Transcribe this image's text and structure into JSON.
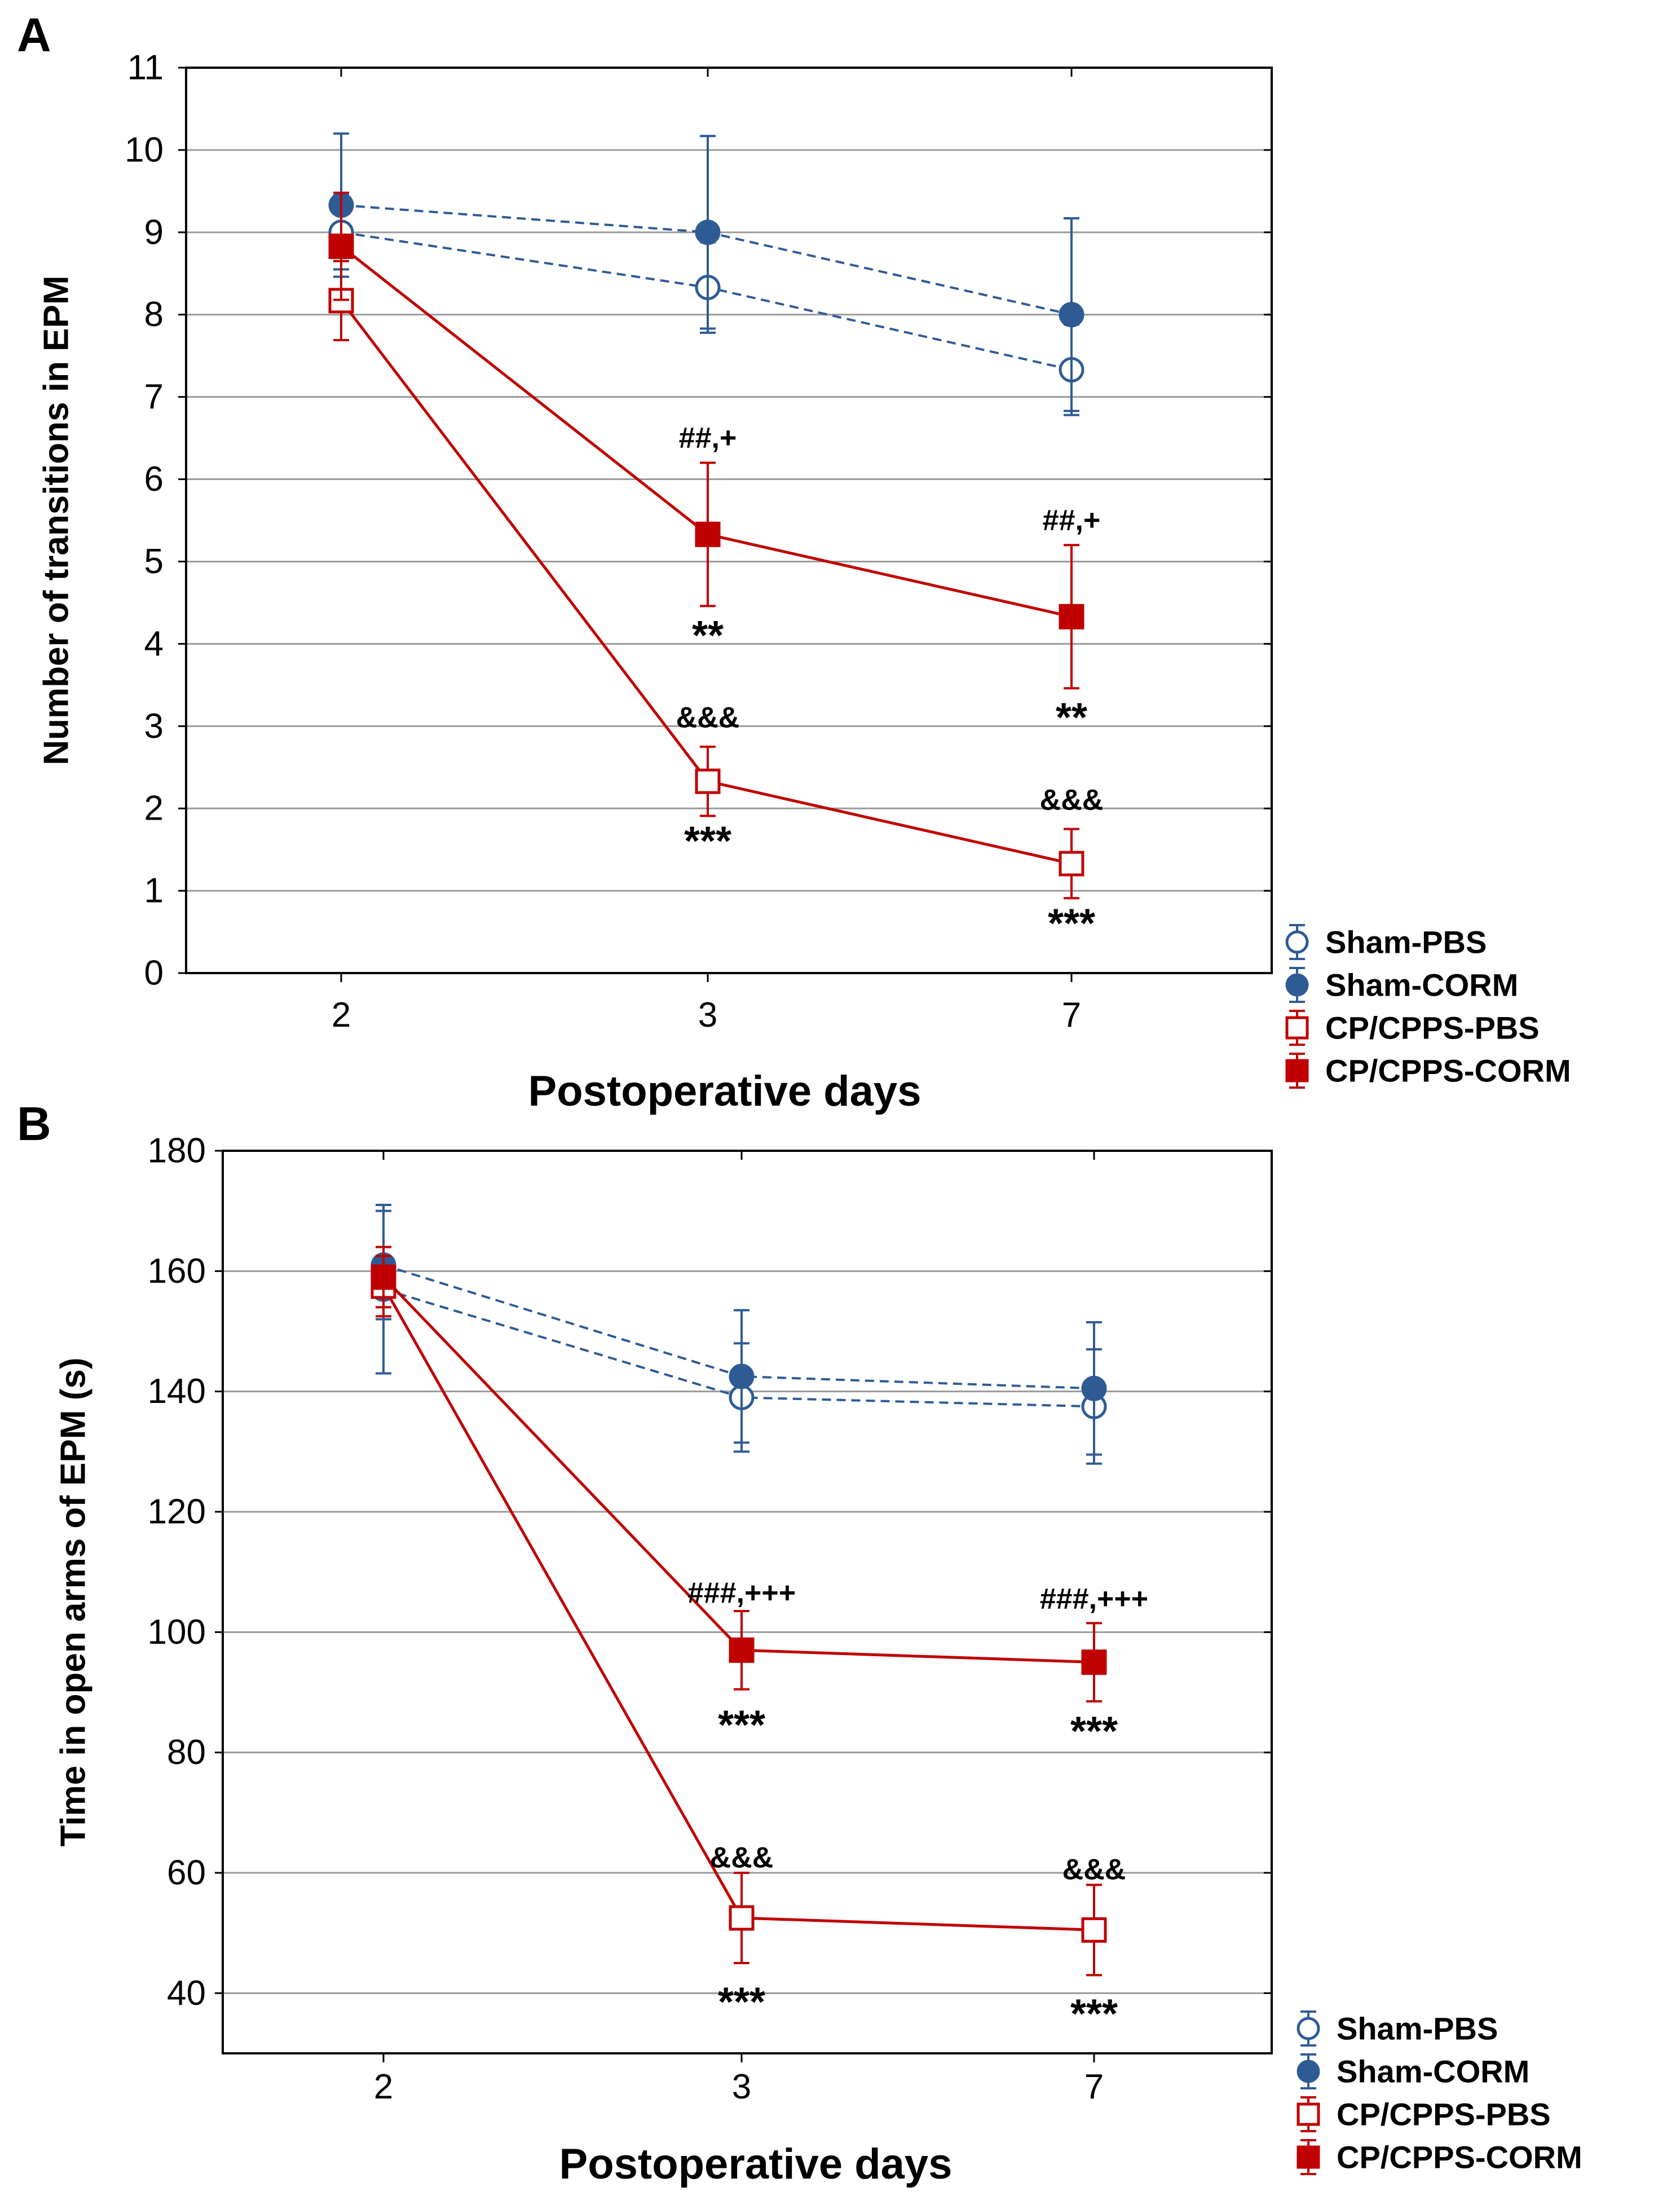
{
  "colors": {
    "sham": "#2f5b94",
    "cp": "#c00000",
    "grid": "#9a9a9a",
    "axis": "#000000"
  },
  "chart_data": [
    {
      "panel_label": "A",
      "type": "line",
      "xlabel": "Postoperative days",
      "ylabel": "Number of transitions in EPM",
      "categories": [
        "2",
        "3",
        "7"
      ],
      "ylim": [
        0,
        11
      ],
      "yticks": [
        "0",
        "1",
        "2",
        "3",
        "4",
        "5",
        "6",
        "7",
        "8",
        "9",
        "10",
        "11"
      ],
      "grid": true,
      "legend_position": "outside-bottom-right",
      "series": [
        {
          "name": "Sham-PBS",
          "values": [
            9.0,
            8.33,
            7.33
          ],
          "errors": [
            0.45,
            0.55,
            0.55
          ],
          "marker": "circle",
          "filled": false,
          "color_key": "sham",
          "dashed": true
        },
        {
          "name": "Sham-CORM",
          "values": [
            9.33,
            9.0,
            8.0
          ],
          "errors": [
            0.87,
            1.17,
            1.17
          ],
          "marker": "circle",
          "filled": true,
          "color_key": "sham",
          "dashed": true
        },
        {
          "name": "CP/CPPS-PBS",
          "values": [
            8.17,
            2.33,
            1.33
          ],
          "errors": [
            0.48,
            0.42,
            0.42
          ],
          "marker": "square",
          "filled": false,
          "color_key": "cp",
          "dashed": false
        },
        {
          "name": "CP/CPPS-CORM",
          "values": [
            8.83,
            5.33,
            4.33
          ],
          "errors": [
            0.65,
            0.87,
            0.87
          ],
          "marker": "square",
          "filled": true,
          "color_key": "cp",
          "dashed": false
        }
      ],
      "annotations": [
        {
          "text": "##,+",
          "category": "3",
          "y": 6.5
        },
        {
          "text": "**",
          "category": "3",
          "y": 4.1
        },
        {
          "text": "&&&",
          "category": "3",
          "y": 3.1
        },
        {
          "text": "***",
          "category": "3",
          "y": 1.6
        },
        {
          "text": "##,+",
          "category": "7",
          "y": 5.5
        },
        {
          "text": "**",
          "category": "7",
          "y": 3.1
        },
        {
          "text": "&&&",
          "category": "7",
          "y": 2.1
        },
        {
          "text": "***",
          "category": "7",
          "y": 0.6
        }
      ]
    },
    {
      "panel_label": "B",
      "type": "line",
      "xlabel": "Postoperative days",
      "ylabel": "Time in open arms of EPM (s)",
      "categories": [
        "2",
        "3",
        "7"
      ],
      "ylim": [
        30,
        180
      ],
      "yticks": [
        "40",
        "60",
        "80",
        "100",
        "120",
        "140",
        "160",
        "180"
      ],
      "grid": true,
      "legend_position": "outside-bottom-right",
      "series": [
        {
          "name": "Sham-PBS",
          "values": [
            157,
            139,
            137.5
          ],
          "errors": [
            14,
            9,
            9.5
          ],
          "marker": "circle",
          "filled": false,
          "color_key": "sham",
          "dashed": true
        },
        {
          "name": "Sham-CORM",
          "values": [
            161,
            142.5,
            140.5
          ],
          "errors": [
            9,
            11,
            11
          ],
          "marker": "circle",
          "filled": true,
          "color_key": "sham",
          "dashed": true
        },
        {
          "name": "CP/CPPS-PBS",
          "values": [
            157.5,
            52.5,
            50.5
          ],
          "errors": [
            5,
            7.5,
            7.5
          ],
          "marker": "square",
          "filled": false,
          "color_key": "cp",
          "dashed": false
        },
        {
          "name": "CP/CPPS-CORM",
          "values": [
            159,
            97,
            95
          ],
          "errors": [
            5,
            6.5,
            6.5
          ],
          "marker": "square",
          "filled": true,
          "color_key": "cp",
          "dashed": false
        }
      ],
      "annotations": [
        {
          "text": "###,+++",
          "category": "3",
          "y": 106.5
        },
        {
          "text": "***",
          "category": "3",
          "y": 84.5
        },
        {
          "text": "&&&",
          "category": "3",
          "y": 62.5
        },
        {
          "text": "***",
          "category": "3",
          "y": 38.5
        },
        {
          "text": "###,+++",
          "category": "7",
          "y": 105.5
        },
        {
          "text": "***",
          "category": "7",
          "y": 83.5
        },
        {
          "text": "&&&",
          "category": "7",
          "y": 60.5
        },
        {
          "text": "***",
          "category": "7",
          "y": 36.5
        }
      ]
    }
  ]
}
